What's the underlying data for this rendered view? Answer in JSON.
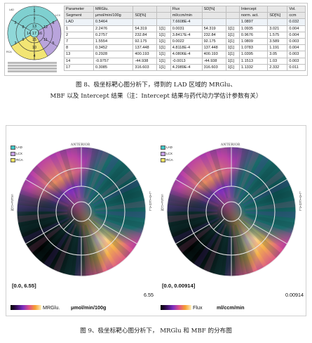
{
  "table": {
    "headers1": [
      "Parameter",
      "MRGlu.",
      "",
      "",
      "Flux",
      "SD[%]",
      "",
      "Intercept",
      "",
      "Vol."
    ],
    "headers2": [
      "Segment",
      "μmol/min/100g",
      "SD[%]",
      "",
      "ml/ccm/min",
      "",
      "",
      "norm. act.",
      "SD[%]",
      "ccm"
    ],
    "rows": [
      [
        "LAD",
        "0.5464",
        "",
        "",
        "7.6608E-4",
        "",
        "",
        "1.0897",
        "",
        "0.032"
      ],
      [
        "1",
        "2.2476",
        "54.319",
        "1[1]",
        "0.0031",
        "54.319",
        "1[1]",
        "1.0935",
        "3.021",
        "0.004"
      ],
      [
        "2",
        "0.2757",
        "232.84",
        "1[1]",
        "3.8417E-4",
        "232.84",
        "1[1]",
        "0.9676",
        "1.575",
        "0.004"
      ],
      [
        "7",
        "1.5554",
        "92.175",
        "1[1]",
        "0.0022",
        "92.175",
        "1[1]",
        "1.0809",
        "3.589",
        "0.003"
      ],
      [
        "8",
        "0.3452",
        "137.448",
        "1[1]",
        "4.8118E-4",
        "137.448",
        "1[1]",
        "1.0783",
        "1.191",
        "0.004"
      ],
      [
        "13",
        "0.2928",
        "400.193",
        "1[1]",
        "4.0806E-4",
        "400.193",
        "1[1]",
        "1.0395",
        "3.05",
        "0.003"
      ],
      [
        "14",
        "-0.9757",
        "-44.938",
        "1[1]",
        "-0.0013",
        "-44.938",
        "1[1]",
        "1.1513",
        "1.03",
        "0.003"
      ],
      [
        "17",
        "0.3085",
        "316.603",
        "1[1]",
        "4.2989E-4",
        "316.603",
        "1[1]",
        "1.1332",
        "2.332",
        "0.011"
      ]
    ]
  },
  "bullseye_small": {
    "segments": [
      "1",
      "2",
      "3",
      "4",
      "5",
      "6",
      "7",
      "8",
      "9",
      "10",
      "11",
      "12",
      "13",
      "14",
      "15",
      "16",
      "17"
    ],
    "labels": {
      "lad": "LAD",
      "lcx": "LCX",
      "rca": "RCA"
    }
  },
  "captions": {
    "fig8_line1": "图 8、极坐标靶心图分析下，得到的 LAD 区域的 MRGlu、",
    "fig8_line2": "MBF 以及 Intercept 结果（注：Intercept 结果与药代动力学估计参数有关）",
    "fig9": "图 9、极坐标靶心图分析下， MRGlu 和 MBF 的分布图"
  },
  "fig9": {
    "legend": [
      "LAD",
      "LCX",
      "RCA"
    ],
    "legend_colors": [
      "#3ec7c7",
      "#c7a0e6",
      "#f0e060"
    ],
    "axis_words": {
      "top": "ANTERIOR",
      "left": "SEPTUM",
      "right": "LATERAL"
    },
    "left": {
      "range": "[0.0, 6.55]",
      "max": "6.55",
      "unit_a": "MRGlu.",
      "unit_b": "μmol/min/100g"
    },
    "right": {
      "range": "[0.0, 0.00914]",
      "max": "0.00914",
      "unit_a": "Flux",
      "unit_b": "ml/ccm/min"
    }
  }
}
